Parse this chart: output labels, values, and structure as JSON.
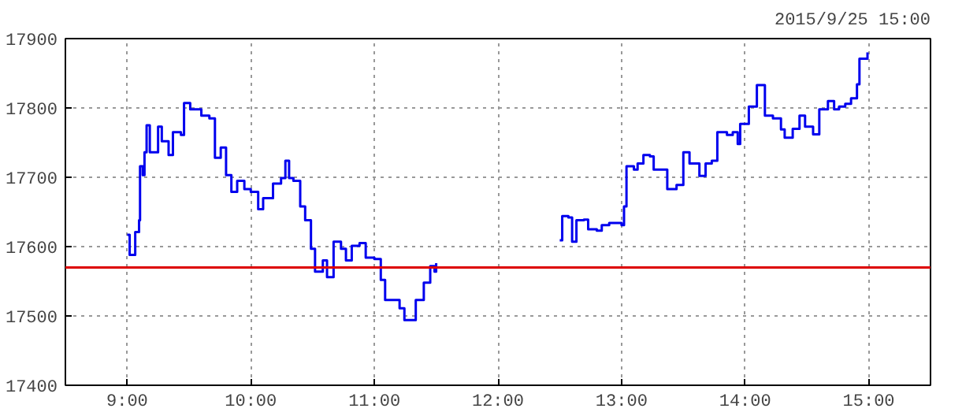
{
  "chart_data": {
    "type": "step",
    "subtitle": "2015/9/25 15:00",
    "x": [
      9.0,
      9.02,
      9.05,
      9.065,
      9.096,
      9.104,
      9.126,
      9.14,
      9.157,
      9.183,
      9.22,
      9.25,
      9.28,
      9.335,
      9.37,
      9.435,
      9.46,
      9.51,
      9.6,
      9.665,
      9.71,
      9.757,
      9.8,
      9.843,
      9.89,
      9.948,
      10.0,
      10.06,
      10.1,
      10.18,
      10.245,
      10.28,
      10.31,
      10.345,
      10.4,
      10.44,
      10.487,
      10.52,
      10.583,
      10.617,
      10.67,
      10.73,
      10.77,
      10.817,
      10.88,
      10.93,
      11.0,
      11.052,
      11.087,
      11.14,
      11.204,
      11.243,
      11.29,
      11.335,
      11.4,
      11.452,
      11.487,
      11.5,
      12.0,
      12.5,
      12.52,
      12.57,
      12.6,
      12.635,
      12.695,
      12.73,
      12.8,
      12.84,
      12.9,
      13.0,
      13.02,
      13.04,
      13.1,
      13.13,
      13.177,
      13.23,
      13.26,
      13.315,
      13.37,
      13.445,
      13.5,
      13.55,
      13.63,
      13.68,
      13.73,
      13.775,
      13.853,
      13.9,
      13.94,
      13.96,
      14.03,
      14.095,
      14.16,
      14.225,
      14.29,
      14.32,
      14.385,
      14.44,
      14.485,
      14.55,
      14.6,
      14.67,
      14.72,
      14.76,
      14.81,
      14.857,
      14.905,
      14.925,
      14.99
    ],
    "series": [
      {
        "color": "#0000ee",
        "values": [
          17617,
          17588,
          17588,
          17621,
          17638,
          17716,
          17703,
          17736,
          17775,
          17736,
          17736,
          17773,
          17752,
          17732,
          17765,
          17761,
          17807,
          17798,
          17789,
          17785,
          17728,
          17743,
          17703,
          17679,
          17695,
          17683,
          17679,
          17654,
          17670,
          17691,
          17699,
          17724,
          17699,
          17695,
          17658,
          17638,
          17597,
          17564,
          17580,
          17556,
          17607,
          17597,
          17580,
          17601,
          17605,
          17584,
          17582,
          17552,
          17523,
          17523,
          17511,
          17494,
          17494,
          17523,
          17548,
          17572,
          17564,
          17576,
          null,
          17609,
          17644,
          17642,
          17607,
          17638,
          17639,
          17625,
          17623,
          17631,
          17634,
          17631,
          17658,
          17716,
          17711,
          17720,
          17732,
          17730,
          17711,
          17711,
          17683,
          17689,
          17736,
          17720,
          17702,
          17720,
          17724,
          17765,
          17761,
          17765,
          17748,
          17777,
          17802,
          17833,
          17789,
          17785,
          17769,
          17757,
          17770,
          17789,
          17773,
          17762,
          17798,
          17810,
          17798,
          17802,
          17806,
          17814,
          17834,
          17871,
          17880
        ]
      }
    ],
    "xlim": [
      8.5,
      15.5
    ],
    "ylim": [
      17400,
      17900
    ],
    "xticks": [
      {
        "value": 9,
        "label": "9:00"
      },
      {
        "value": 10,
        "label": "10:00"
      },
      {
        "value": 11,
        "label": "11:00"
      },
      {
        "value": 12,
        "label": "12:00"
      },
      {
        "value": 13,
        "label": "13:00"
      },
      {
        "value": 14,
        "label": "14:00"
      },
      {
        "value": 15,
        "label": "15:00"
      }
    ],
    "yticks": [
      17400,
      17500,
      17600,
      17700,
      17800,
      17900
    ],
    "ref_lines": [
      {
        "axis": "y",
        "value": 17570,
        "color": "#dd0000"
      }
    ],
    "grid": true
  }
}
